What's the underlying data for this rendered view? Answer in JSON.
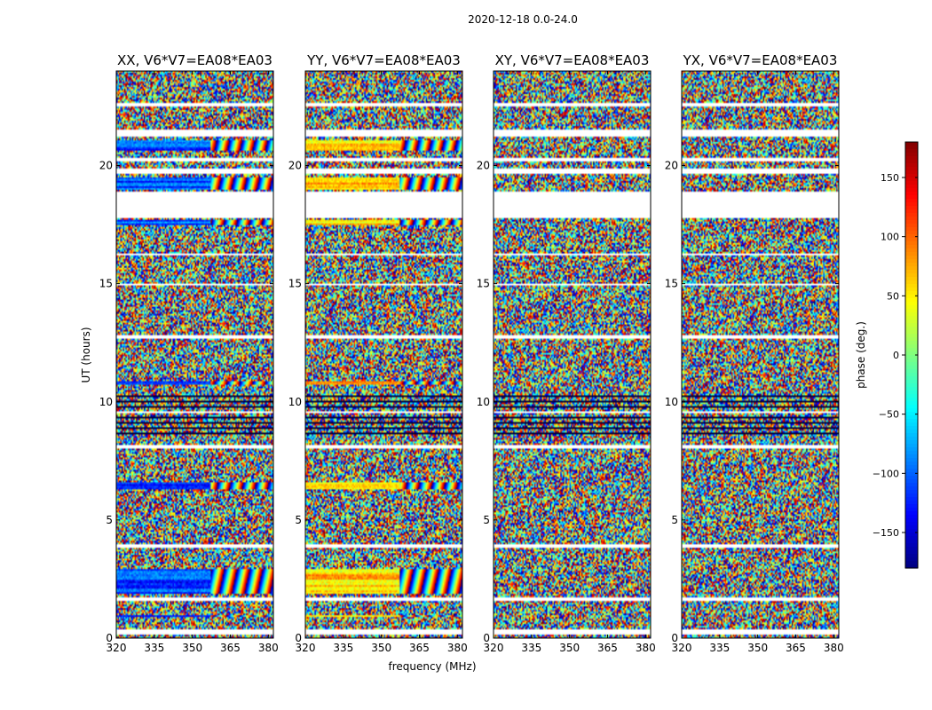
{
  "figure_title": "2020-12-18 0.0-24.0",
  "chart_data": {
    "type": "heatmap",
    "title": "2020-12-18 0.0-24.0",
    "xlabel": "frequency (MHz)",
    "ylabel": "UT (hours)",
    "xlim": [
      320,
      382
    ],
    "ylim": [
      0,
      24
    ],
    "x_ticks": [
      320,
      335,
      350,
      365,
      380
    ],
    "y_ticks": [
      0,
      5,
      10,
      15,
      20
    ],
    "panels": [
      {
        "title": "XX, V6*V7=EA08*EA03",
        "polarization": "XX",
        "base_phase": -110
      },
      {
        "title": "YY, V6*V7=EA08*EA03",
        "polarization": "YY",
        "base_phase": 60
      },
      {
        "title": "XY, V6*V7=EA08*EA03",
        "polarization": "XY",
        "base_phase": null
      },
      {
        "title": "YX, V6*V7=EA08*EA03",
        "polarization": "YX",
        "base_phase": null
      }
    ],
    "colorbar": {
      "label": "phase (deg.)",
      "range": [
        -180,
        180
      ],
      "ticks": [
        150,
        100,
        50,
        0,
        -50,
        -100,
        -150
      ],
      "tick_labels": [
        "150",
        "100",
        "50",
        "0",
        "−50",
        "−100",
        "−150"
      ],
      "colormap": "jet"
    },
    "coherent_bands_ut": [
      [
        0.9,
        1.0
      ],
      [
        1.9,
        2.9
      ],
      [
        6.3,
        6.6
      ],
      [
        10.7,
        10.9
      ],
      [
        20.6,
        21.1
      ],
      [
        19.0,
        19.5
      ],
      [
        17.5,
        17.7
      ]
    ],
    "gaps_ut": [
      [
        17.8,
        18.9
      ],
      [
        19.65,
        19.9
      ],
      [
        20.15,
        20.3
      ],
      [
        21.2,
        21.5
      ],
      [
        22.5,
        22.65
      ],
      [
        14.9,
        15.0
      ],
      [
        16.2,
        16.3
      ],
      [
        3.85,
        4.0
      ],
      [
        12.7,
        12.8
      ],
      [
        0.15,
        0.4
      ],
      [
        1.55,
        1.7
      ],
      [
        8.05,
        8.15
      ],
      [
        9.5,
        9.6
      ]
    ]
  }
}
